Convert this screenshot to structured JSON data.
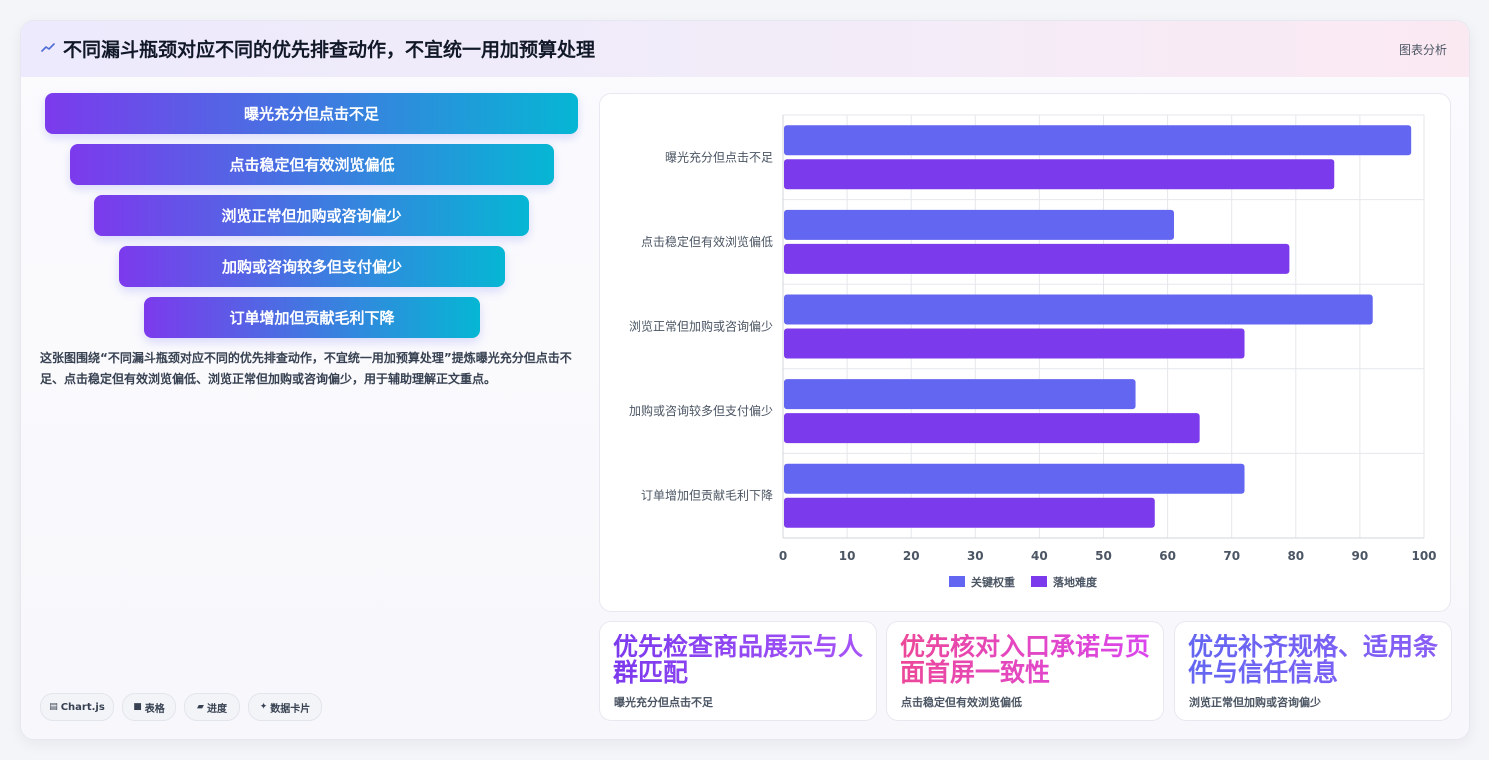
{
  "header": {
    "title": "不同漏斗瓶颈对应不同的优先排查动作，不宜统一用加预算处理",
    "right_label": "图表分析"
  },
  "funnel": {
    "steps": [
      "曝光充分但点击不足",
      "点击稳定但有效浏览偏低",
      "浏览正常但加购或咨询偏少",
      "加购或咨询较多但支付偏少",
      "订单增加但贡献毛利下降"
    ]
  },
  "description": "这张图围绕“不同漏斗瓶颈对应不同的优先排查动作，不宜统一用加预算处理”提炼曝光充分但点击不足、点击稳定但有效浏览偏低、浏览正常但加购或咨询偏少，用于辅助理解正文重点。",
  "chips": [
    {
      "icon": "chart-icon",
      "glyph": "▤",
      "label": "Chart.js"
    },
    {
      "icon": "table-icon",
      "glyph": "■",
      "label": "表格"
    },
    {
      "icon": "progress-icon",
      "glyph": "▰",
      "label": "进度"
    },
    {
      "icon": "sparkle-icon",
      "glyph": "✦",
      "label": "数据卡片"
    }
  ],
  "chart_data": {
    "type": "bar",
    "orientation": "horizontal",
    "categories": [
      "曝光充分但点击不足",
      "点击稳定但有效浏览偏低",
      "浏览正常但加购或咨询偏少",
      "加购或咨询较多但支付偏少",
      "订单增加但贡献毛利下降"
    ],
    "series": [
      {
        "name": "关键权重",
        "color": "#6366f1",
        "values": [
          98,
          61,
          92,
          55,
          72
        ]
      },
      {
        "name": "落地难度",
        "color": "#7c3aed",
        "values": [
          86,
          79,
          72,
          65,
          58
        ]
      }
    ],
    "xlim": [
      0,
      100
    ],
    "xticks": [
      "0",
      "10",
      "20",
      "30",
      "40",
      "50",
      "60",
      "70",
      "80",
      "90",
      "100"
    ],
    "grid": true,
    "legend_position": "bottom"
  },
  "tips": [
    {
      "title": "优先检查商品展示与人群匹配",
      "subtitle": "曝光充分但点击不足",
      "gradient": [
        "#7c3aed",
        "#a855f7"
      ]
    },
    {
      "title": "优先核对入口承诺与页面首屏一致性",
      "subtitle": "点击稳定但有效浏览偏低",
      "gradient": [
        "#ec4899",
        "#d946ef"
      ]
    },
    {
      "title": "优先补齐规格、适用条件与信任信息",
      "subtitle": "浏览正常但加购或咨询偏少",
      "gradient": [
        "#6366f1",
        "#8b5cf6"
      ]
    }
  ]
}
